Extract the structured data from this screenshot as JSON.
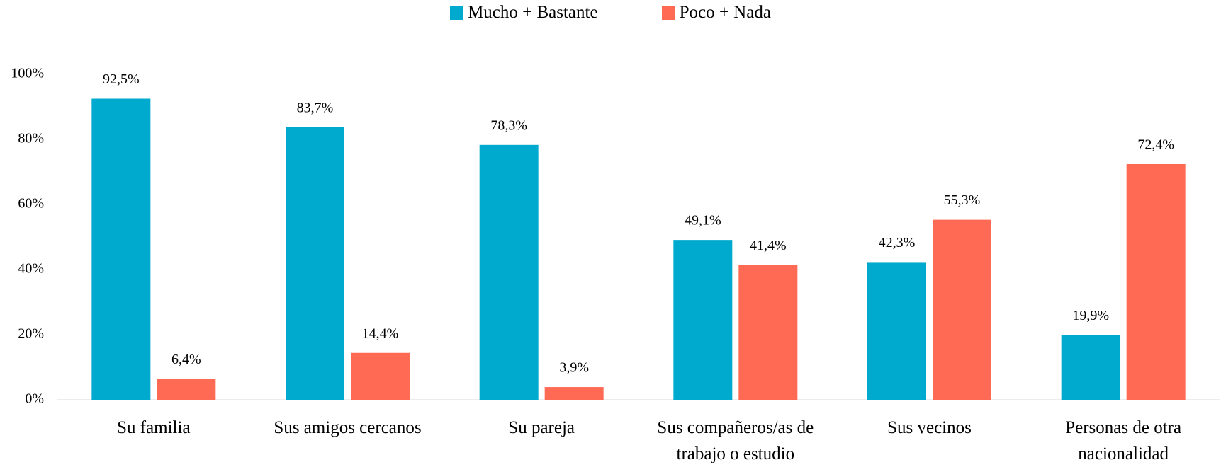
{
  "chart_data": {
    "type": "bar",
    "categories": [
      "Su familia",
      "Sus amigos cercanos",
      "Su pareja",
      "Sus compañeros/as de trabajo o estudio",
      "Sus vecinos",
      "Personas de otra nacionalidad"
    ],
    "series": [
      {
        "name": "Mucho + Bastante",
        "color": "#00a9ce",
        "values": [
          92.5,
          83.7,
          78.3,
          49.1,
          42.3,
          19.9
        ],
        "value_labels": [
          "92,5%",
          "83,7%",
          "78,3%",
          "49,1%",
          "42,3%",
          "19,9%"
        ]
      },
      {
        "name": "Poco + Nada",
        "color": "#ff6a55",
        "values": [
          6.4,
          14.4,
          3.9,
          41.4,
          55.3,
          72.4
        ],
        "value_labels": [
          "6,4%",
          "14,4%",
          "3,9%",
          "41,4%",
          "55,3%",
          "72,4%"
        ]
      }
    ],
    "ylim": [
      0,
      100
    ],
    "yticks": [
      {
        "value": 0,
        "label": "0%"
      },
      {
        "value": 20,
        "label": "20%"
      },
      {
        "value": 40,
        "label": "40%"
      },
      {
        "value": 60,
        "label": "60%"
      },
      {
        "value": 80,
        "label": "80%"
      },
      {
        "value": 100,
        "label": "100%"
      }
    ],
    "grid": false,
    "legend": "top"
  }
}
